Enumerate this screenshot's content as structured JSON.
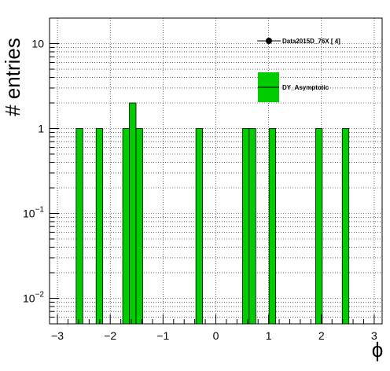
{
  "chart_data": {
    "type": "bar",
    "xlabel": "ϕ",
    "ylabel": "# entries",
    "xlim": [
      -3.15,
      3.15
    ],
    "ylim": [
      0.005,
      20
    ],
    "log_y": true,
    "grid": true,
    "bin_width": 0.126,
    "x_ticks": [
      -3,
      -2,
      -1,
      0,
      1,
      2,
      3
    ],
    "x_tick_labels": [
      "−3",
      "−2",
      "−1",
      "0",
      "1",
      "2",
      "3"
    ],
    "y_ticks": [
      {
        "value": 0.01,
        "label": "10",
        "exp": "−2"
      },
      {
        "value": 0.1,
        "label": "10",
        "exp": "−1"
      },
      {
        "value": 1,
        "label": "1",
        "exp": ""
      },
      {
        "value": 10,
        "label": "10",
        "exp": ""
      }
    ],
    "series": [
      {
        "name": "DY_Asymptotic",
        "color": "#00cc00",
        "bins": [
          {
            "x": -2.583,
            "value": 1
          },
          {
            "x": -2.205,
            "value": 1
          },
          {
            "x": -1.701,
            "value": 1
          },
          {
            "x": -1.575,
            "value": 2
          },
          {
            "x": -1.449,
            "value": 1
          },
          {
            "x": -0.315,
            "value": 1
          },
          {
            "x": 0.567,
            "value": 1
          },
          {
            "x": 0.693,
            "value": 1
          },
          {
            "x": 1.071,
            "value": 1
          },
          {
            "x": 1.953,
            "value": 1
          },
          {
            "x": 2.457,
            "value": 1
          }
        ]
      }
    ],
    "legend": {
      "position": "top-right",
      "entries": [
        {
          "label": "Data2015D_76X [       4]",
          "marker": "point",
          "color": "#000000"
        },
        {
          "label": "DY_Asymptotic",
          "marker": "box",
          "color": "#00cc00"
        }
      ]
    }
  }
}
